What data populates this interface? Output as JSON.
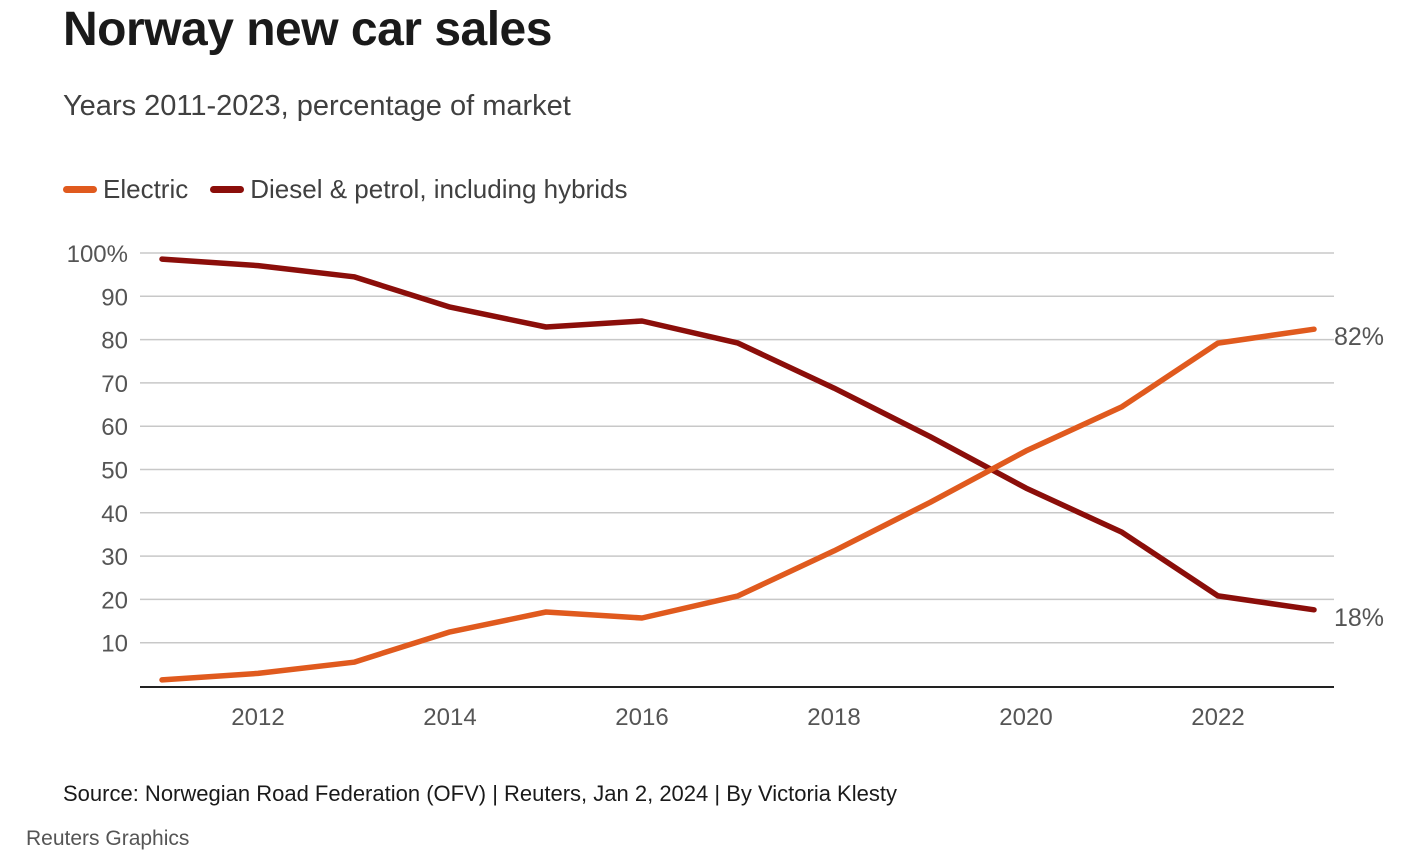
{
  "header": {
    "title": "Norway new car sales",
    "subtitle": "Years 2011-2023, percentage of market"
  },
  "footer": {
    "source": "Source: Norwegian Road Federation (OFV) | Reuters, Jan 2, 2024 | By Victoria Klesty",
    "brand": "Reuters Graphics"
  },
  "chart_data": {
    "type": "line",
    "title": "Norway new car sales",
    "subtitle": "Years 2011-2023, percentage of market",
    "xlabel": "",
    "ylabel": "",
    "x": [
      2011,
      2012,
      2013,
      2014,
      2015,
      2016,
      2017,
      2018,
      2019,
      2020,
      2021,
      2022,
      2023
    ],
    "xlim": [
      2011,
      2023
    ],
    "ylim": [
      0,
      100
    ],
    "x_ticks": [
      "2012",
      "2014",
      "2016",
      "2018",
      "2020",
      "2022"
    ],
    "y_ticks": [
      "100%",
      "90",
      "80",
      "70",
      "60",
      "50",
      "40",
      "30",
      "20",
      "10"
    ],
    "grid": true,
    "legend_position": "top-left",
    "series": [
      {
        "name": "Electric",
        "color": "#e05a1e",
        "values": [
          1.4,
          2.9,
          5.5,
          12.5,
          17.1,
          15.7,
          20.8,
          31.2,
          42.4,
          54.3,
          64.5,
          79.2,
          82.4
        ],
        "end_label": "82%"
      },
      {
        "name": "Diesel & petrol, including hybrids",
        "color": "#8b0e0a",
        "values": [
          98.6,
          97.1,
          94.5,
          87.5,
          82.9,
          84.3,
          79.2,
          68.8,
          57.6,
          45.7,
          35.5,
          20.8,
          17.6
        ],
        "end_label": "18%"
      }
    ],
    "gridline_color": "#c8c8c8",
    "axis_color": "#222222"
  }
}
